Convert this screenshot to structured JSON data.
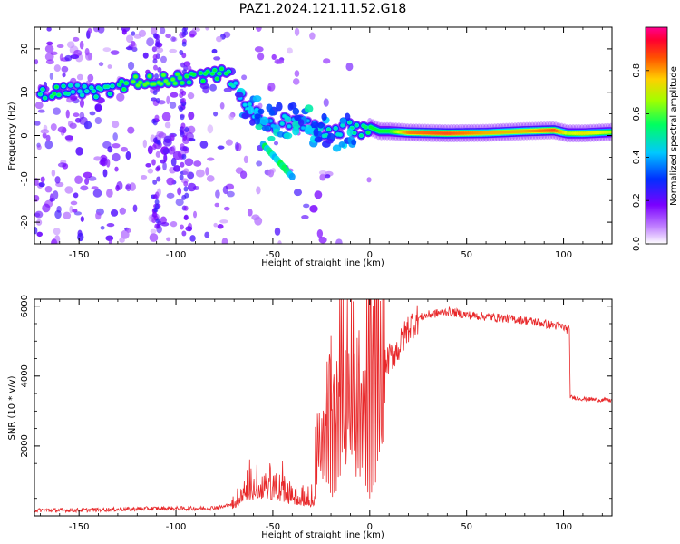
{
  "title": "PAZ1.2024.121.11.52.G18",
  "chart_data": [
    {
      "type": "heatmap",
      "xlabel": "Height of straight line (km)",
      "ylabel": "Frequency (Hz)",
      "xlim": [
        -173,
        125
      ],
      "ylim": [
        -25,
        25
      ],
      "xticks": [
        -150,
        -100,
        -50,
        0,
        50,
        100
      ],
      "yticks": [
        -20,
        -10,
        0,
        10,
        20
      ],
      "grid": false,
      "colorbar": {
        "label": "Normalized spectral amplitude",
        "range": [
          0,
          1
        ],
        "ticks": [
          0.0,
          0.2,
          0.4,
          0.6,
          0.8
        ],
        "colormap": "gist_rainbow",
        "colors": [
          "#ffffff",
          "#7a00ff",
          "#0030ff",
          "#00e0ff",
          "#00ff30",
          "#e0ff00",
          "#ff8000",
          "#ff0040",
          "#ff0080"
        ]
      },
      "ridge": {
        "x": [
          -170,
          -162,
          -152,
          -142,
          -132,
          -122,
          -112,
          -102,
          -92,
          -82,
          -74,
          -68,
          -62,
          -56,
          -50,
          -45,
          -40,
          -35,
          -30,
          -25,
          -20,
          -15,
          -10,
          -5,
          0,
          5,
          10,
          20,
          40,
          60,
          80,
          95,
          102,
          110,
          125
        ],
        "y": [
          9.5,
          10,
          10.5,
          10,
          11,
          12.5,
          12.5,
          13,
          13.5,
          14,
          14.5,
          10,
          6,
          4,
          2,
          4,
          3,
          3,
          2,
          1,
          0,
          1,
          2,
          1,
          2,
          1,
          1,
          0.7,
          0.5,
          0.6,
          1.0,
          1.2,
          0.5,
          0.5,
          0.8
        ],
        "amplitude": [
          0.45,
          0.5,
          0.4,
          0.45,
          0.45,
          0.55,
          0.55,
          0.55,
          0.5,
          0.5,
          0.5,
          0.35,
          0.4,
          0.35,
          0.35,
          0.4,
          0.35,
          0.35,
          0.35,
          0.4,
          0.45,
          0.4,
          0.45,
          0.45,
          0.5,
          0.5,
          0.5,
          0.75,
          0.8,
          0.7,
          0.7,
          0.8,
          0.6,
          0.65,
          0.6
        ]
      }
    },
    {
      "type": "line",
      "xlabel": "Height of straight line (km)",
      "ylabel": "SNR (10 * v/v)",
      "xlim": [
        -173,
        125
      ],
      "ylim": [
        0,
        6200
      ],
      "xticks": [
        -150,
        -100,
        -50,
        0,
        50,
        100
      ],
      "yticks": [
        2000,
        4000,
        6000
      ],
      "grid": false,
      "color": "#e8282a",
      "series": [
        {
          "x": [
            -173,
            -150,
            -110,
            -100,
            -85,
            -75,
            -70,
            -65,
            -60,
            -55,
            -50,
            -45,
            -40,
            -35,
            -30,
            -28,
            -25,
            -20,
            -15,
            -10,
            -5,
            0,
            5,
            10,
            15,
            20,
            25,
            30,
            40,
            50,
            60,
            70,
            80,
            90,
            100,
            103,
            103.5,
            110,
            125
          ],
          "y": [
            150,
            150,
            200,
            200,
            200,
            250,
            400,
            800,
            900,
            900,
            900,
            800,
            600,
            600,
            500,
            500,
            1000,
            3000,
            3500,
            3000,
            2500,
            3700,
            4000,
            4500,
            4800,
            5400,
            5650,
            5750,
            5850,
            5750,
            5700,
            5650,
            5600,
            5500,
            5400,
            5300,
            3400,
            3350,
            3300
          ]
        }
      ]
    }
  ]
}
